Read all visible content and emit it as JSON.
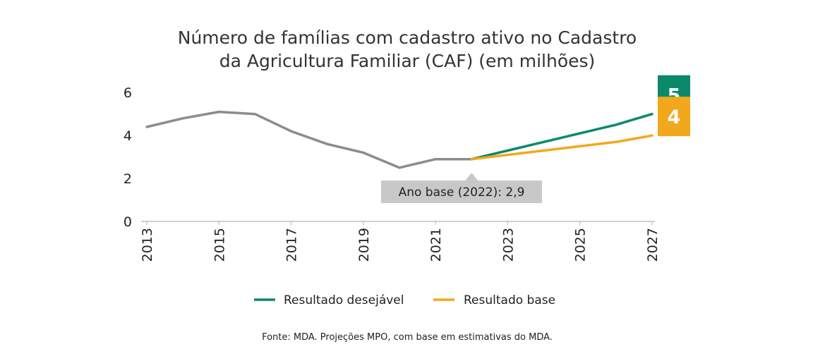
{
  "chart_data": {
    "type": "line",
    "title_lines": [
      "Número de famílias com cadastro ativo no Cadastro",
      "da Agricultura Familiar (CAF) (em milhões)"
    ],
    "x_ticks": [
      "2013",
      "2015",
      "2017",
      "2019",
      "2021",
      "2023",
      "2025",
      "2027"
    ],
    "y_ticks": [
      "0",
      "2",
      "4",
      "6"
    ],
    "ylim": [
      0,
      6.5
    ],
    "xlim": [
      2013,
      2027
    ],
    "grid": false,
    "legend_position": "bottom",
    "series": [
      {
        "key": "historico",
        "color": "#8c8c8c",
        "x": [
          2013,
          2014,
          2015,
          2016,
          2017,
          2018,
          2019,
          2020,
          2021,
          2022
        ],
        "y": [
          4.4,
          4.8,
          5.1,
          5.0,
          4.2,
          3.6,
          3.2,
          2.5,
          2.9,
          2.9
        ]
      },
      {
        "key": "desejavel",
        "name": "Resultado desejável",
        "color": "#0a8a6a",
        "x": [
          2022,
          2023,
          2024,
          2025,
          2026,
          2027
        ],
        "y": [
          2.9,
          3.3,
          3.7,
          4.1,
          4.5,
          5.0
        ]
      },
      {
        "key": "base",
        "name": "Resultado base",
        "color": "#f2a81d",
        "x": [
          2022,
          2023,
          2024,
          2025,
          2026,
          2027
        ],
        "y": [
          2.9,
          3.1,
          3.3,
          3.5,
          3.7,
          4.0
        ]
      }
    ],
    "end_labels": [
      {
        "series": "desejavel",
        "text": "5",
        "color": "#0a8a6a"
      },
      {
        "series": "base",
        "text": "4",
        "color": "#f2a81d"
      }
    ],
    "annotation": {
      "text": "Ano base (2022):  2,9",
      "x": 2022,
      "y": 2.9,
      "bg": "#c8c8c8"
    },
    "legend": [
      {
        "label": "Resultado desejável",
        "color": "#0a8a6a"
      },
      {
        "label": "Resultado base",
        "color": "#f2a81d"
      }
    ],
    "source": "Fonte: MDA. Projeções MPO, com base em estimativas do MDA."
  }
}
